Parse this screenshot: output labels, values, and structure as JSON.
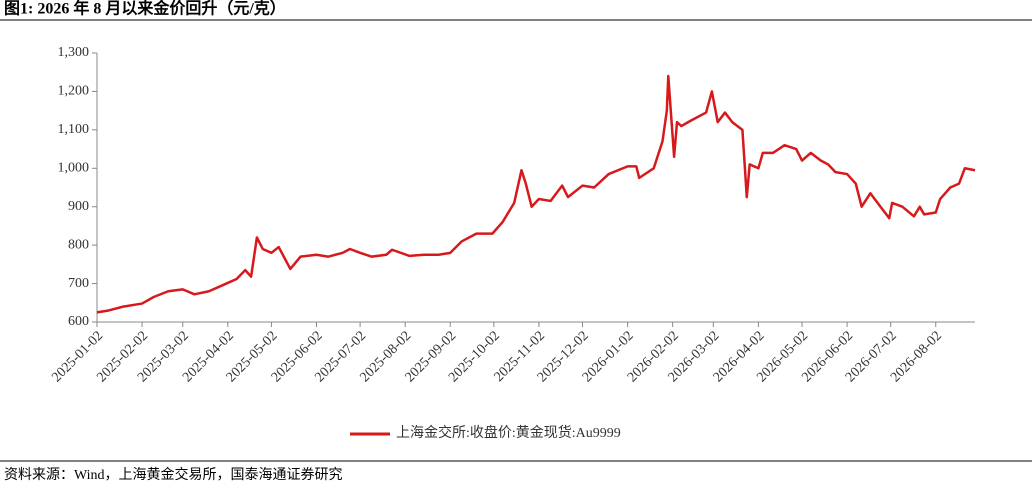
{
  "chart_data": {
    "type": "line",
    "title": "图1: 2026 年 8 月以来金价回升（元/克）",
    "source": "资料来源：Wind，上海黄金交易所，国泰海通证券研究",
    "x": [
      "2025-01-02",
      "2025-01-10",
      "2025-01-20",
      "2025-02-02",
      "2025-02-10",
      "2025-02-20",
      "2025-03-02",
      "2025-03-10",
      "2025-03-20",
      "2025-04-01",
      "2025-04-08",
      "2025-04-14",
      "2025-04-18",
      "2025-04-22",
      "2025-04-26",
      "2025-05-02",
      "2025-05-07",
      "2025-05-15",
      "2025-05-22",
      "2025-06-02",
      "2025-06-10",
      "2025-06-20",
      "2025-06-25",
      "2025-07-02",
      "2025-07-10",
      "2025-07-20",
      "2025-07-24",
      "2025-08-05",
      "2025-08-15",
      "2025-08-25",
      "2025-09-02",
      "2025-09-10",
      "2025-09-20",
      "2025-10-01",
      "2025-10-08",
      "2025-10-16",
      "2025-10-21",
      "2025-10-24",
      "2025-10-28",
      "2025-11-02",
      "2025-11-10",
      "2025-11-18",
      "2025-11-22",
      "2025-12-02",
      "2025-12-10",
      "2025-12-20",
      "2026-01-02",
      "2026-01-08",
      "2026-01-10",
      "2026-01-20",
      "2026-01-26",
      "2026-01-29",
      "2026-01-30",
      "2026-02-03",
      "2026-02-05",
      "2026-02-08",
      "2026-02-15",
      "2026-02-25",
      "2026-03-01",
      "2026-03-05",
      "2026-03-10",
      "2026-03-15",
      "2026-03-22",
      "2026-03-25",
      "2026-03-27",
      "2026-04-02",
      "2026-04-05",
      "2026-04-12",
      "2026-04-20",
      "2026-04-28",
      "2026-05-02",
      "2026-05-08",
      "2026-05-15",
      "2026-05-20",
      "2026-05-25",
      "2026-06-02",
      "2026-06-08",
      "2026-06-12",
      "2026-06-18",
      "2026-06-25",
      "2026-07-01",
      "2026-07-03",
      "2026-07-10",
      "2026-07-18",
      "2026-07-22",
      "2026-07-25",
      "2026-08-02",
      "2026-08-05",
      "2026-08-12",
      "2026-08-18",
      "2026-08-22",
      "2026-08-29"
    ],
    "series": [
      {
        "name": "上海金交所:收盘价:黄金现货:Au9999",
        "color": "#d7191c",
        "values": [
          625,
          630,
          640,
          648,
          665,
          680,
          685,
          672,
          680,
          700,
          712,
          735,
          718,
          820,
          790,
          780,
          795,
          738,
          770,
          775,
          770,
          780,
          790,
          780,
          770,
          775,
          788,
          772,
          775,
          775,
          780,
          810,
          830,
          830,
          860,
          910,
          995,
          960,
          900,
          920,
          915,
          955,
          925,
          955,
          950,
          985,
          1005,
          1005,
          975,
          1000,
          1070,
          1150,
          1240,
          1030,
          1120,
          1110,
          1125,
          1145,
          1200,
          1120,
          1145,
          1120,
          1100,
          925,
          1010,
          1000,
          1040,
          1040,
          1060,
          1050,
          1020,
          1040,
          1020,
          1010,
          990,
          985,
          960,
          900,
          935,
          900,
          870,
          910,
          900,
          875,
          900,
          880,
          885,
          920,
          950,
          960,
          1000,
          995
        ]
      }
    ],
    "xlim": [
      "2025-01-02",
      "2026-08-29"
    ],
    "xticks": [
      "2025-01-02",
      "2025-02-02",
      "2025-03-02",
      "2025-04-02",
      "2025-05-02",
      "2025-06-02",
      "2025-07-02",
      "2025-08-02",
      "2025-09-02",
      "2025-10-02",
      "2025-11-02",
      "2025-12-02",
      "2026-01-02",
      "2026-02-02",
      "2026-03-02",
      "2026-04-02",
      "2026-05-02",
      "2026-06-02",
      "2026-07-02",
      "2026-08-02"
    ],
    "ylim": [
      600,
      1300
    ],
    "yticks": [
      600,
      700,
      800,
      900,
      {
        "value": 1000,
        "label": "1,000"
      },
      {
        "value": 1100,
        "label": "1,100"
      },
      {
        "value": 1200,
        "label": "1,200"
      },
      {
        "value": 1300,
        "label": "1,300"
      }
    ],
    "grid": false
  }
}
